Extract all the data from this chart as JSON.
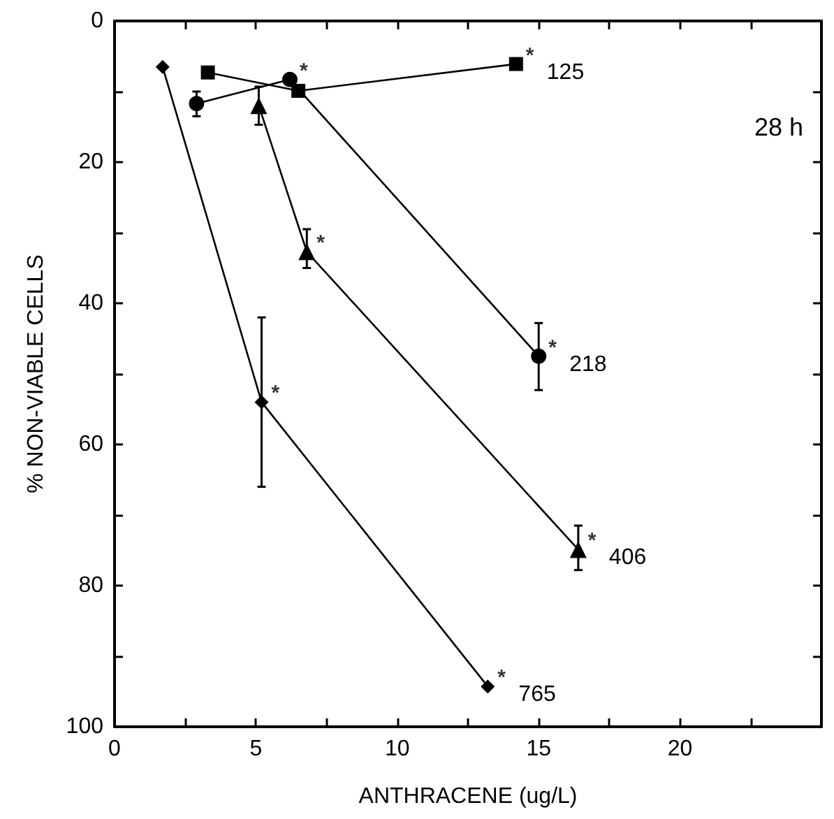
{
  "chart_data": {
    "type": "line",
    "xlabel": "ANTHRACENE (ug/L)",
    "ylabel": "% NON-VIABLE CELLS",
    "xlim": [
      0,
      25
    ],
    "xticks": [
      0,
      {
        "value": 2.5,
        "label": null
      },
      5,
      {
        "value": 7.5,
        "label": null
      },
      10,
      {
        "value": 12.5,
        "label": null
      },
      15,
      {
        "value": 17.5,
        "label": null
      },
      20,
      {
        "value": 22.5,
        "label": null
      }
    ],
    "ylim": [
      100,
      0
    ],
    "yticks": [
      0,
      {
        "value": 10,
        "label": null
      },
      20,
      {
        "value": 30,
        "label": null
      },
      40,
      {
        "value": 50,
        "label": null
      },
      60,
      {
        "value": 70,
        "label": null
      },
      80,
      {
        "value": 90,
        "label": null
      },
      100
    ],
    "grid": false,
    "line_style": "solid",
    "series": [
      {
        "name": "125",
        "color": "#000000",
        "marker": "square",
        "x": [
          3.3,
          6.5,
          14.2
        ],
        "values": [
          7.3,
          9.9,
          6.1
        ],
        "errors": [
          null,
          null,
          null
        ]
      },
      {
        "name": "218",
        "color": "#000000",
        "marker": "circle",
        "x": [
          2.9,
          6.2,
          15.0
        ],
        "values": [
          11.7,
          8.3,
          47.5
        ],
        "errors": [
          [
            10,
            13.5
          ],
          null,
          [
            42.8,
            52.3
          ]
        ]
      },
      {
        "name": "406",
        "color": "#000000",
        "marker": "triangle",
        "x": [
          5.1,
          6.8,
          16.4
        ],
        "values": [
          12,
          32.7,
          74.9
        ],
        "errors": [
          [
            9.3,
            14.7
          ],
          [
            29.5,
            35
          ],
          [
            71.5,
            77.8
          ]
        ]
      },
      {
        "name": "765",
        "color": "#000000",
        "marker": "diamond",
        "x": [
          1.7,
          5.2,
          13.2
        ],
        "values": [
          6.5,
          54,
          94.3
        ],
        "errors": [
          null,
          [
            42,
            66
          ],
          null
        ]
      }
    ],
    "annotations": [
      "28 h",
      {
        "text": "*",
        "x": 14.2,
        "y": 6.1
      },
      {
        "text": "*",
        "x": 6.2,
        "y": 8.3
      },
      {
        "text": "*",
        "x": 15.0,
        "y": 47.5
      },
      {
        "text": "*",
        "x": 6.8,
        "y": 32.7
      },
      {
        "text": "*",
        "x": 16.4,
        "y": 74.9
      },
      {
        "text": "*",
        "x": 5.2,
        "y": 54
      },
      {
        "text": "*",
        "x": 13.2,
        "y": 94.3
      }
    ]
  }
}
